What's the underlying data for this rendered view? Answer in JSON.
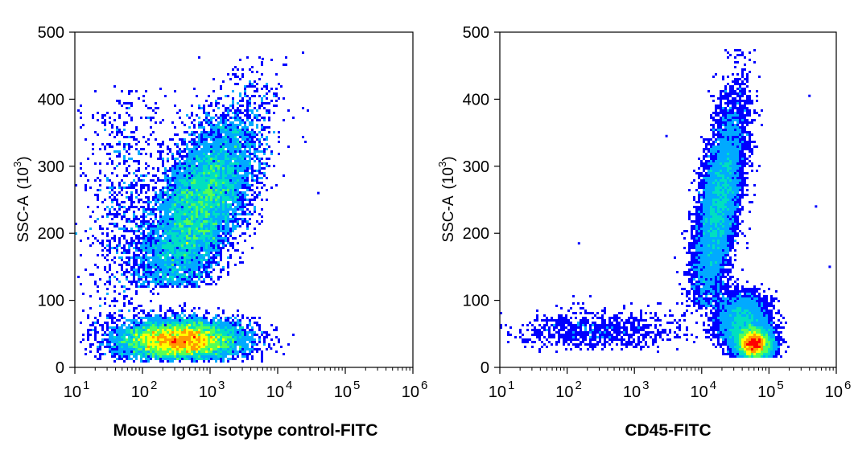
{
  "chart_data": [
    {
      "type": "scatter",
      "style": "pseudocolor density plot",
      "title": "",
      "xlabel": "Mouse IgG1 isotype control-FITC",
      "ylabel": "SSC-A (10^3)",
      "ylabel_text": "SSC-A",
      "ylabel_unit_base": "10",
      "ylabel_unit_exp": "3",
      "xscale": "log",
      "xlim": [
        10,
        1000000
      ],
      "ylim": [
        0,
        500
      ],
      "xticks": [
        {
          "base": "10",
          "exp": "1"
        },
        {
          "base": "10",
          "exp": "2"
        },
        {
          "base": "10",
          "exp": "3"
        },
        {
          "base": "10",
          "exp": "4"
        },
        {
          "base": "10",
          "exp": "5"
        },
        {
          "base": "10",
          "exp": "6"
        }
      ],
      "yticks": [
        "0",
        "100",
        "200",
        "300",
        "400",
        "500"
      ],
      "populations": [
        {
          "name": "",
          "x_center": 700,
          "y_center": 240,
          "x_spread_decades": 0.32,
          "y_spread": 70,
          "slant": 0.0038,
          "peak_density": "high",
          "y_range": [
            120,
            475
          ]
        },
        {
          "name": "",
          "x_center": 350,
          "y_center": 40,
          "x_spread_decades": 0.45,
          "y_spread": 15,
          "slant": 0,
          "peak_density": "high",
          "y_range": [
            10,
            120
          ]
        },
        {
          "name": "",
          "x_center": 60,
          "y_center": 230,
          "x_spread_decades": 0.35,
          "y_spread": 110,
          "slant": 0,
          "peak_density": "low",
          "y_range": [
            20,
            420
          ]
        }
      ],
      "outliers": [
        {
          "x": 40000,
          "y": 260
        },
        {
          "x": 8000,
          "y": 28
        },
        {
          "x": 6000,
          "y": 460
        }
      ],
      "grid": false,
      "legend": "none"
    },
    {
      "type": "scatter",
      "style": "pseudocolor density plot",
      "title": "",
      "xlabel": "CD45-FITC",
      "ylabel": "SSC-A (10^3)",
      "ylabel_text": "SSC-A",
      "ylabel_unit_base": "10",
      "ylabel_unit_exp": "3",
      "xscale": "log",
      "xlim": [
        10,
        1000000
      ],
      "ylim": [
        0,
        500
      ],
      "xticks": [
        {
          "base": "10",
          "exp": "1"
        },
        {
          "base": "10",
          "exp": "2"
        },
        {
          "base": "10",
          "exp": "3"
        },
        {
          "base": "10",
          "exp": "4"
        },
        {
          "base": "10",
          "exp": "5"
        },
        {
          "base": "10",
          "exp": "6"
        }
      ],
      "yticks": [
        "0",
        "100",
        "200",
        "300",
        "400",
        "500"
      ],
      "populations": [
        {
          "name": "",
          "x_center": 18000,
          "y_center": 240,
          "x_spread_decades": 0.14,
          "y_spread": 75,
          "slant": 0.0015,
          "peak_density": "high",
          "y_range": [
            90,
            475
          ]
        },
        {
          "name": "",
          "x_center": 60000,
          "y_center": 35,
          "x_spread_decades": 0.13,
          "y_spread": 12,
          "slant": 0,
          "peak_density": "high",
          "y_range": [
            15,
            80
          ]
        },
        {
          "name": "",
          "x_center": 40000,
          "y_center": 70,
          "x_spread_decades": 0.2,
          "y_spread": 20,
          "slant": 0,
          "peak_density": "medium",
          "y_range": [
            30,
            130
          ]
        },
        {
          "name": "",
          "x_center": 300,
          "y_center": 55,
          "x_spread_decades": 0.6,
          "y_spread": 15,
          "slant": 0,
          "peak_density": "low",
          "y_range": [
            25,
            110
          ]
        }
      ],
      "outliers": [
        {
          "x": 150,
          "y": 185
        },
        {
          "x": 3000,
          "y": 345
        },
        {
          "x": 400000,
          "y": 405
        },
        {
          "x": 800000,
          "y": 150
        },
        {
          "x": 500000,
          "y": 240
        }
      ],
      "grid": false,
      "legend": "none"
    }
  ],
  "colormap": [
    "#0000ff",
    "#00aaff",
    "#00e0c0",
    "#55ff55",
    "#ffff00",
    "#ff9900",
    "#ff0000"
  ]
}
